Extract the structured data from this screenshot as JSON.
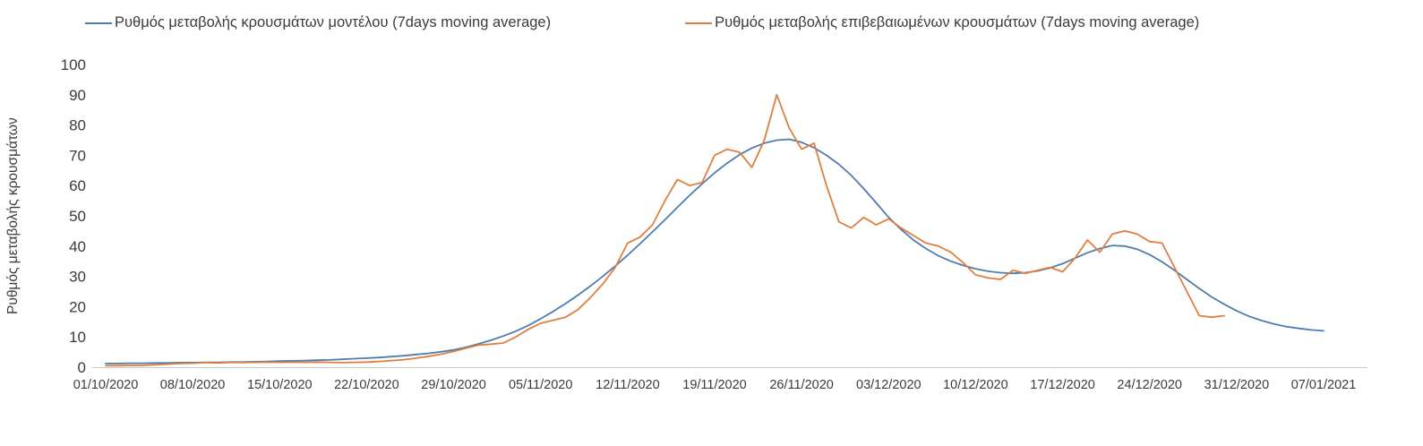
{
  "chart": {
    "y_axis_title": "Ρυθμός μεταβολής κρουσμάτων",
    "legend": [
      {
        "label": "Ρυθμός μεταβολής κρουσμάτων μοντέλου (7days moving average)",
        "color": "#4f7cae"
      },
      {
        "label": "Ρυθμός μεταβολής επιβεβαιωμένων κρουσμάτων (7days moving average)",
        "color": "#df7f3f"
      }
    ]
  },
  "chart_data": {
    "type": "line",
    "title": "",
    "xlabel": "",
    "ylabel": "Ρυθμός μεταβολής κρουσμάτων",
    "ylim": [
      0,
      100
    ],
    "grid": false,
    "legend_position": "top",
    "y_ticks": [
      0,
      10,
      20,
      30,
      40,
      50,
      60,
      70,
      80,
      90,
      100
    ],
    "x_tick_labels": [
      "01/10/2020",
      "08/10/2020",
      "15/10/2020",
      "22/10/2020",
      "29/10/2020",
      "05/11/2020",
      "12/11/2020",
      "19/11/2020",
      "26/11/2020",
      "03/12/2020",
      "10/12/2020",
      "17/12/2020",
      "24/12/2020",
      "31/12/2020",
      "07/01/2021"
    ],
    "x_unit": "daily points, one tick every 7 days, 01/10/2020 to 07/01/2021",
    "series": [
      {
        "name": "Ρυθμός μεταβολής κρουσμάτων μοντέλου (7days moving average)",
        "color": "#4f7cae",
        "values": [
          1.2,
          1.2,
          1.3,
          1.3,
          1.4,
          1.4,
          1.5,
          1.5,
          1.6,
          1.6,
          1.7,
          1.7,
          1.8,
          1.9,
          2.0,
          2.1,
          2.2,
          2.3,
          2.4,
          2.6,
          2.8,
          3.0,
          3.2,
          3.5,
          3.8,
          4.2,
          4.6,
          5.1,
          5.7,
          6.6,
          7.7,
          8.9,
          10.3,
          11.9,
          13.8,
          16.0,
          18.4,
          21.0,
          23.8,
          26.8,
          30.0,
          33.4,
          37.0,
          40.8,
          44.7,
          48.7,
          52.8,
          56.8,
          60.6,
          64.2,
          67.4,
          70.2,
          72.4,
          74.0,
          75.0,
          75.3,
          74.3,
          72.5,
          70.0,
          67.0,
          63.3,
          59.0,
          54.3,
          49.5,
          45.5,
          42.0,
          39.2,
          36.8,
          35.0,
          33.6,
          32.5,
          31.7,
          31.2,
          31.0,
          31.2,
          31.8,
          32.8,
          34.2,
          36.0,
          37.8,
          39.2,
          40.2,
          40.0,
          39.0,
          37.2,
          34.8,
          32.0,
          29.0,
          26.0,
          23.2,
          20.8,
          18.6,
          16.8,
          15.4,
          14.3,
          13.4,
          12.8,
          12.3,
          12.0
        ]
      },
      {
        "name": "Ρυθμός μεταβολής επιβεβαιωμένων κρουσμάτων (7days moving average)",
        "color": "#df7f3f",
        "values": [
          0.5,
          0.5,
          0.6,
          0.6,
          0.8,
          1.0,
          1.2,
          1.3,
          1.5,
          1.4,
          1.6,
          1.5,
          1.6,
          1.7,
          1.6,
          1.7,
          1.6,
          1.7,
          1.6,
          1.5,
          1.6,
          1.7,
          1.9,
          2.2,
          2.5,
          3.0,
          3.6,
          4.3,
          5.2,
          6.3,
          7.3,
          7.6,
          8.0,
          10.0,
          12.5,
          14.5,
          15.5,
          16.5,
          19.0,
          23.0,
          27.5,
          33.0,
          41.0,
          43.0,
          47.0,
          55.0,
          62.0,
          60.0,
          61.0,
          70.0,
          72.0,
          71.0,
          66.0,
          75.0,
          90.0,
          79.0,
          72.0,
          74.0,
          60.0,
          48.0,
          46.0,
          49.5,
          47.0,
          49.0,
          46.0,
          43.5,
          41.0,
          40.0,
          38.0,
          34.5,
          30.5,
          29.5,
          29.0,
          32.0,
          31.0,
          32.0,
          33.0,
          31.5,
          36.0,
          42.0,
          38.0,
          44.0,
          45.0,
          44.0,
          41.5,
          41.0,
          33.0,
          25.0,
          17.0,
          16.5,
          17.0
        ]
      }
    ]
  }
}
